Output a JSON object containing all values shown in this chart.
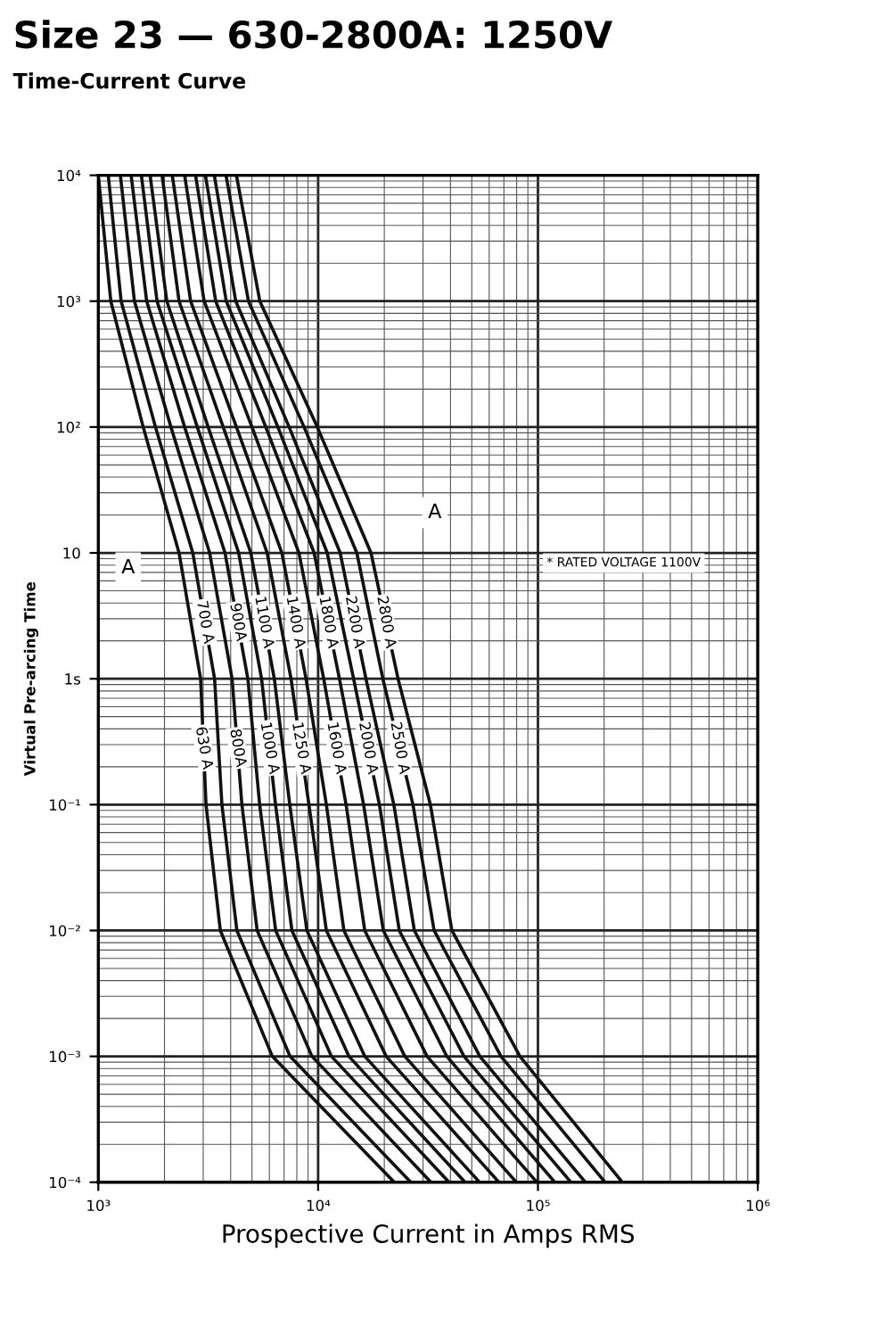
{
  "chart_data": {
    "type": "line",
    "title": "Size 23 — 630-2800A: 1250V",
    "subtitle": "Time-Current Curve",
    "xlabel": "Prospective Current in Amps RMS",
    "ylabel": "Virtual Pre-arcing Time",
    "log": "xy",
    "grid": true,
    "marker": "none",
    "line_style": "solid",
    "xlim": [
      1000,
      1000000
    ],
    "ylim": [
      0.0001,
      10000
    ],
    "xticks": [
      {
        "value": 1000,
        "label": "10³"
      },
      {
        "value": 10000,
        "label": "10⁴"
      },
      {
        "value": 100000,
        "label": "10⁵"
      },
      {
        "value": 1000000,
        "label": "10⁶"
      }
    ],
    "yticks": [
      {
        "value": 0.0001,
        "label": "10⁻⁴"
      },
      {
        "value": 0.001,
        "label": "10⁻³"
      },
      {
        "value": 0.01,
        "label": "10⁻²"
      },
      {
        "value": 0.1,
        "label": "10⁻¹"
      },
      {
        "value": 1,
        "label": "1s"
      },
      {
        "value": 10,
        "label": "10"
      },
      {
        "value": 100,
        "label": "10²"
      },
      {
        "value": 1000,
        "label": "10³"
      },
      {
        "value": 10000,
        "label": "10⁴"
      }
    ],
    "annotations": [
      "A",
      "A",
      "* RATED VOLTAGE 1100V"
    ],
    "series": [
      {
        "name": "630 A",
        "color": "#111111",
        "x": [
          1000,
          1140,
          1600,
          2330,
          2920,
          3090,
          3590,
          6190,
          22200
        ],
        "values": [
          10000,
          1000,
          100,
          10,
          1,
          0.1,
          0.01,
          0.001,
          0.0001
        ]
      },
      {
        "name": "700 A",
        "color": "#111111",
        "x": [
          1110,
          1270,
          1820,
          2690,
          3380,
          3650,
          4270,
          7450,
          26400
        ],
        "values": [
          10000,
          1000,
          100,
          10,
          1,
          0.1,
          0.01,
          0.001,
          0.0001
        ]
      },
      {
        "name": "800A",
        "color": "#111111",
        "x": [
          1260,
          1460,
          2140,
          3210,
          4060,
          4500,
          5280,
          9380,
          32600
        ],
        "values": [
          10000,
          1000,
          100,
          10,
          1,
          0.1,
          0.01,
          0.001,
          0.0001
        ]
      },
      {
        "name": "900A",
        "color": "#111111",
        "x": [
          1410,
          1660,
          2470,
          3770,
          4790,
          5420,
          6410,
          11500,
          39400
        ],
        "values": [
          10000,
          1000,
          100,
          10,
          1,
          0.1,
          0.01,
          0.001,
          0.0001
        ]
      },
      {
        "name": "1000 A",
        "color": "#111111",
        "x": [
          1570,
          1850,
          2820,
          4350,
          5530,
          6400,
          7600,
          13800,
          46600
        ],
        "values": [
          10000,
          1000,
          100,
          10,
          1,
          0.1,
          0.01,
          0.001,
          0.0001
        ]
      },
      {
        "name": "1100 A",
        "color": "#111111",
        "x": [
          1720,
          2050,
          3160,
          4940,
          6320,
          7430,
          8890,
          16300,
          54300
        ],
        "values": [
          10000,
          1000,
          100,
          10,
          1,
          0.1,
          0.01,
          0.001,
          0.0001
        ]
      },
      {
        "name": "1250 A",
        "color": "#111111",
        "x": [
          1950,
          2330,
          3700,
          5860,
          7530,
          9080,
          10900,
          20400,
          66500
        ],
        "values": [
          10000,
          1000,
          100,
          10,
          1,
          0.1,
          0.01,
          0.001,
          0.0001
        ]
      },
      {
        "name": "1400 A",
        "color": "#111111",
        "x": [
          2170,
          2630,
          4250,
          6840,
          8810,
          10900,
          13100,
          24800,
          79800
        ],
        "values": [
          10000,
          1000,
          100,
          10,
          1,
          0.1,
          0.01,
          0.001,
          0.0001
        ]
      },
      {
        "name": "1600 A",
        "color": "#111111",
        "x": [
          2470,
          3030,
          5000,
          8180,
          10600,
          13400,
          16300,
          31300,
          98900
        ],
        "values": [
          10000,
          1000,
          100,
          10,
          1,
          0.1,
          0.01,
          0.001,
          0.0001
        ]
      },
      {
        "name": "1800 A",
        "color": "#111111",
        "x": [
          2770,
          3420,
          5780,
          9590,
          12500,
          16100,
          19800,
          38500,
          119400
        ],
        "values": [
          10000,
          1000,
          100,
          10,
          1,
          0.1,
          0.01,
          0.001,
          0.0001
        ]
      },
      {
        "name": "2000 A",
        "color": "#111111",
        "x": [
          3070,
          3820,
          6560,
          11000,
          14500,
          19000,
          23400,
          46100,
          141300
        ],
        "values": [
          10000,
          1000,
          100,
          10,
          1,
          0.1,
          0.01,
          0.001,
          0.0001
        ]
      },
      {
        "name": "2200 A",
        "color": "#111111",
        "x": [
          3370,
          4220,
          7380,
          12600,
          16500,
          22100,
          27400,
          54400,
          164400
        ],
        "values": [
          10000,
          1000,
          100,
          10,
          1,
          0.1,
          0.01,
          0.001,
          0.0001
        ]
      },
      {
        "name": "2500 A",
        "color": "#111111",
        "x": [
          3810,
          4820,
          8630,
          15000,
          19700,
          27000,
          33700,
          67900,
          202000
        ],
        "values": [
          10000,
          1000,
          100,
          10,
          1,
          0.1,
          0.01,
          0.001,
          0.0001
        ]
      },
      {
        "name": "2800 A",
        "color": "#111111",
        "x": [
          4250,
          5430,
          9910,
          17400,
          23100,
          32400,
          40600,
          82800,
          242000
        ],
        "values": [
          10000,
          1000,
          100,
          10,
          1,
          0.1,
          0.01,
          0.001,
          0.0001
        ]
      }
    ]
  }
}
